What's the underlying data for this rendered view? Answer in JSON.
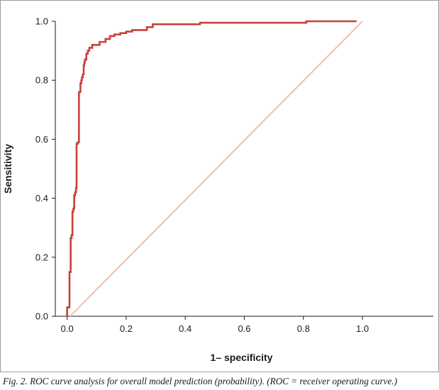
{
  "chart_data": {
    "type": "line",
    "xlabel": "1– specificity",
    "ylabel": "Sensitivity",
    "xlim": [
      -0.04,
      1.24
    ],
    "ylim": [
      0,
      1
    ],
    "x_ticks": [
      "0.0",
      "0.2",
      "0.4",
      "0.6",
      "0.8",
      "1.0"
    ],
    "y_ticks": [
      "0.0",
      "0.2",
      "0.4",
      "0.6",
      "0.8",
      "1.0"
    ],
    "grid": false,
    "legend": "none",
    "series": [
      {
        "color": "#c8413a",
        "x": [
          0.0,
          0.0,
          0.008,
          0.008,
          0.012,
          0.012,
          0.015,
          0.015,
          0.018,
          0.018,
          0.021,
          0.021,
          0.024,
          0.024,
          0.027,
          0.027,
          0.03,
          0.03,
          0.032,
          0.032,
          0.036,
          0.036,
          0.04,
          0.04,
          0.045,
          0.045,
          0.048,
          0.048,
          0.05,
          0.05,
          0.053,
          0.053,
          0.056,
          0.056,
          0.058,
          0.058,
          0.06,
          0.06,
          0.065,
          0.065,
          0.07,
          0.07,
          0.075,
          0.075,
          0.08,
          0.08,
          0.085,
          0.085,
          0.1,
          0.1,
          0.11,
          0.11,
          0.13,
          0.13,
          0.145,
          0.145,
          0.16,
          0.16,
          0.18,
          0.18,
          0.2,
          0.2,
          0.22,
          0.22,
          0.27,
          0.27,
          0.29,
          0.29,
          0.45,
          0.45,
          0.81,
          0.81,
          0.98
        ],
        "y": [
          0.0,
          0.03,
          0.03,
          0.15,
          0.15,
          0.265,
          0.265,
          0.275,
          0.275,
          0.355,
          0.355,
          0.365,
          0.365,
          0.41,
          0.41,
          0.42,
          0.42,
          0.435,
          0.435,
          0.585,
          0.585,
          0.59,
          0.59,
          0.76,
          0.76,
          0.79,
          0.79,
          0.8,
          0.8,
          0.81,
          0.81,
          0.82,
          0.82,
          0.85,
          0.85,
          0.86,
          0.86,
          0.87,
          0.87,
          0.89,
          0.89,
          0.9,
          0.9,
          0.91,
          0.91,
          0.91,
          0.91,
          0.92,
          0.92,
          0.92,
          0.92,
          0.93,
          0.93,
          0.94,
          0.94,
          0.95,
          0.95,
          0.955,
          0.955,
          0.96,
          0.96,
          0.965,
          0.965,
          0.97,
          0.97,
          0.98,
          0.98,
          0.99,
          0.99,
          0.995,
          0.995,
          1.0,
          1.0
        ]
      },
      {
        "color": "#f0c4ad",
        "x": [
          0.01,
          1.0
        ],
        "y": [
          0.0,
          1.0
        ]
      }
    ]
  },
  "caption": "Fig. 2. ROC curve analysis for overall model prediction (probability). (ROC = receiver operating curve.)"
}
